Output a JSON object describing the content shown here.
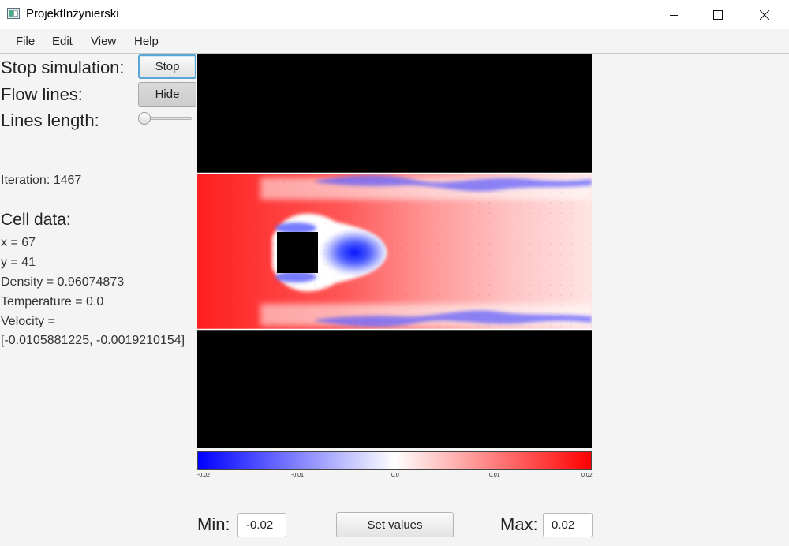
{
  "window": {
    "title": "ProjektInżynierski"
  },
  "menu": [
    "File",
    "Edit",
    "View",
    "Help"
  ],
  "controls": {
    "stop_label": "Stop simulation:",
    "stop_button": "Stop",
    "flow_label": "Flow lines:",
    "flow_button": "Hide",
    "length_label": "Lines length:",
    "length_value": 0.0
  },
  "iteration_text": "Iteration: 1467",
  "cell": {
    "heading": "Cell data:",
    "x": "x = 67",
    "y": "y = 41",
    "density": "Density = 0.96074873",
    "temperature": "Temperature = 0.0",
    "velocity_label": "Velocity =",
    "velocity_value": "[-0.0105881225, -0.0019210154]"
  },
  "colorbar": {
    "ticks": [
      "-0.02",
      "-0.01",
      "0.0",
      "0.01",
      "0.02"
    ],
    "min_color": "#0000ff",
    "mid_color": "#ffffff",
    "max_color": "#ff0000"
  },
  "bottom": {
    "min_label": "Min:",
    "min_value": "-0.02",
    "set_button": "Set values",
    "max_label": "Max:",
    "max_value": "0.02"
  }
}
